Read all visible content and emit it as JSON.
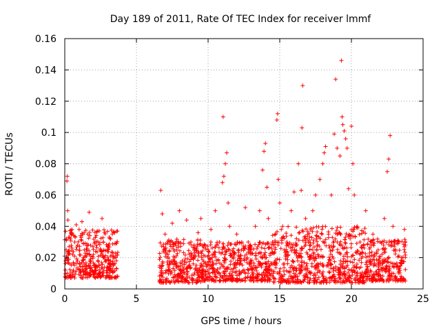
{
  "chart_data": {
    "type": "scatter",
    "title": "Day 189 of 2011, Rate Of TEC Index for receiver lmmf",
    "xlabel": "GPS time / hours",
    "ylabel": "ROTI / TECUs",
    "xlim": [
      0,
      25
    ],
    "ylim": [
      0,
      0.16
    ],
    "x_ticks": [
      0,
      5,
      10,
      15,
      20,
      25
    ],
    "x_tick_labels": [
      "0",
      "5",
      "10",
      "15",
      "20",
      "25"
    ],
    "y_ticks": [
      0,
      0.02,
      0.04,
      0.06,
      0.08,
      0.1,
      0.12,
      0.14,
      0.16
    ],
    "y_tick_labels": [
      "0",
      "0.02",
      "0.04",
      "0.06",
      "0.08",
      "0.1",
      "0.12",
      "0.14",
      "0.16"
    ],
    "grid": true,
    "marker": "plus",
    "color": "#ff0000",
    "series": [
      {
        "points": [
          [
            0.0,
            0.021
          ],
          [
            0.05,
            0.018
          ],
          [
            0.1,
            0.025
          ],
          [
            0.12,
            0.031
          ],
          [
            0.15,
            0.069
          ],
          [
            0.18,
            0.072
          ],
          [
            0.2,
            0.05
          ],
          [
            0.22,
            0.044
          ],
          [
            0.3,
            0.027
          ],
          [
            0.35,
            0.016
          ],
          [
            0.4,
            0.032
          ],
          [
            0.45,
            0.036
          ],
          [
            0.5,
            0.038
          ],
          [
            0.55,
            0.022
          ],
          [
            0.6,
            0.012
          ],
          [
            0.7,
            0.03
          ],
          [
            0.8,
            0.041
          ],
          [
            0.9,
            0.028
          ],
          [
            1.0,
            0.038
          ],
          [
            1.1,
            0.034
          ],
          [
            1.2,
            0.043
          ],
          [
            1.3,
            0.02
          ],
          [
            1.5,
            0.025
          ],
          [
            1.6,
            0.035
          ],
          [
            1.7,
            0.049
          ],
          [
            1.8,
            0.018
          ],
          [
            2.0,
            0.022
          ],
          [
            2.2,
            0.028
          ],
          [
            2.4,
            0.015
          ],
          [
            2.6,
            0.045
          ],
          [
            2.7,
            0.03
          ],
          [
            2.8,
            0.019
          ],
          [
            3.0,
            0.025
          ],
          [
            3.2,
            0.032
          ],
          [
            3.4,
            0.021
          ],
          [
            3.5,
            0.029
          ],
          [
            3.6,
            0.018
          ],
          [
            6.7,
            0.063
          ],
          [
            6.8,
            0.048
          ],
          [
            6.9,
            0.027
          ],
          [
            7.0,
            0.035
          ],
          [
            7.2,
            0.022
          ],
          [
            7.5,
            0.042
          ],
          [
            7.8,
            0.025
          ],
          [
            8.0,
            0.05
          ],
          [
            8.2,
            0.018
          ],
          [
            8.5,
            0.044
          ],
          [
            8.8,
            0.03
          ],
          [
            9.0,
            0.02
          ],
          [
            9.3,
            0.036
          ],
          [
            9.5,
            0.045
          ],
          [
            9.8,
            0.028
          ],
          [
            10.0,
            0.015
          ],
          [
            10.2,
            0.038
          ],
          [
            10.5,
            0.05
          ],
          [
            10.8,
            0.03
          ],
          [
            11.0,
            0.068
          ],
          [
            11.05,
            0.11
          ],
          [
            11.1,
            0.072
          ],
          [
            11.2,
            0.08
          ],
          [
            11.3,
            0.087
          ],
          [
            11.4,
            0.055
          ],
          [
            11.5,
            0.04
          ],
          [
            11.8,
            0.022
          ],
          [
            12.0,
            0.035
          ],
          [
            12.3,
            0.018
          ],
          [
            12.6,
            0.052
          ],
          [
            12.8,
            0.03
          ],
          [
            13.0,
            0.025
          ],
          [
            13.3,
            0.04
          ],
          [
            13.6,
            0.05
          ],
          [
            13.8,
            0.076
          ],
          [
            13.9,
            0.088
          ],
          [
            14.0,
            0.093
          ],
          [
            14.1,
            0.065
          ],
          [
            14.2,
            0.045
          ],
          [
            14.5,
            0.03
          ],
          [
            14.8,
            0.108
          ],
          [
            14.85,
            0.112
          ],
          [
            14.9,
            0.07
          ],
          [
            15.0,
            0.055
          ],
          [
            15.2,
            0.04
          ],
          [
            15.5,
            0.03
          ],
          [
            15.8,
            0.05
          ],
          [
            16.0,
            0.062
          ],
          [
            16.3,
            0.08
          ],
          [
            16.5,
            0.063
          ],
          [
            16.55,
            0.103
          ],
          [
            16.6,
            0.13
          ],
          [
            16.8,
            0.045
          ],
          [
            17.0,
            0.03
          ],
          [
            17.3,
            0.05
          ],
          [
            17.5,
            0.06
          ],
          [
            17.8,
            0.07
          ],
          [
            18.0,
            0.08
          ],
          [
            18.1,
            0.087
          ],
          [
            18.2,
            0.091
          ],
          [
            18.4,
            0.035
          ],
          [
            18.6,
            0.06
          ],
          [
            18.8,
            0.099
          ],
          [
            18.9,
            0.134
          ],
          [
            19.0,
            0.09
          ],
          [
            19.2,
            0.085
          ],
          [
            19.3,
            0.146
          ],
          [
            19.35,
            0.11
          ],
          [
            19.4,
            0.105
          ],
          [
            19.5,
            0.101
          ],
          [
            19.6,
            0.096
          ],
          [
            19.7,
            0.09
          ],
          [
            19.8,
            0.064
          ],
          [
            20.0,
            0.104
          ],
          [
            20.1,
            0.08
          ],
          [
            20.2,
            0.06
          ],
          [
            20.4,
            0.04
          ],
          [
            20.6,
            0.03
          ],
          [
            21.0,
            0.05
          ],
          [
            21.5,
            0.035
          ],
          [
            22.0,
            0.03
          ],
          [
            22.3,
            0.045
          ],
          [
            22.5,
            0.075
          ],
          [
            22.6,
            0.083
          ],
          [
            22.7,
            0.098
          ],
          [
            22.9,
            0.04
          ],
          [
            23.2,
            0.03
          ],
          [
            23.5,
            0.02
          ],
          [
            23.7,
            0.038
          ]
        ]
      }
    ],
    "bands": [
      {
        "x0": 0.0,
        "x1": 3.7,
        "ymin": 0.007,
        "ymax": 0.038
      },
      {
        "x0": 6.6,
        "x1": 9.5,
        "ymin": 0.004,
        "ymax": 0.032
      },
      {
        "x0": 9.5,
        "x1": 14.5,
        "ymin": 0.005,
        "ymax": 0.03
      },
      {
        "x0": 14.5,
        "x1": 21.0,
        "ymin": 0.004,
        "ymax": 0.04
      },
      {
        "x0": 21.0,
        "x1": 23.8,
        "ymin": 0.005,
        "ymax": 0.032
      }
    ]
  }
}
